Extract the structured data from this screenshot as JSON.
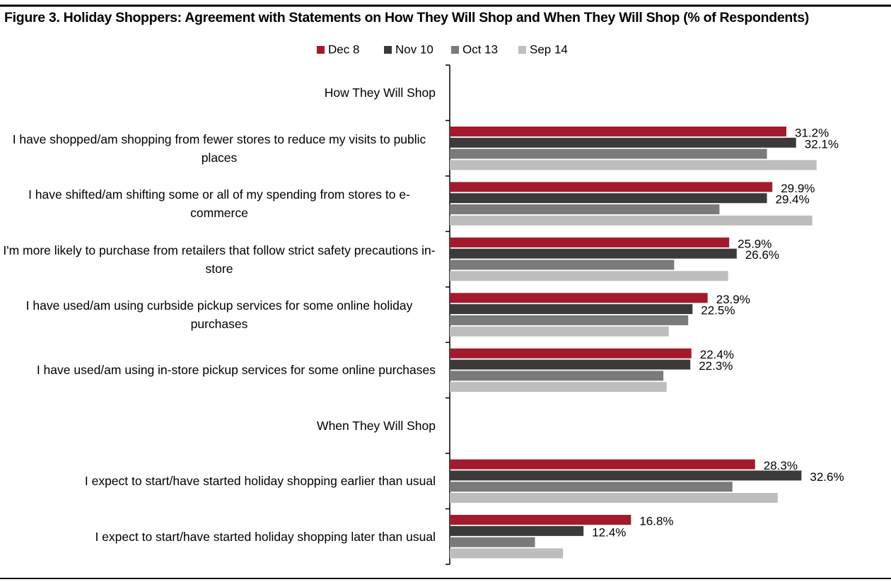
{
  "chart_data": {
    "type": "hbar",
    "title": "Figure 3. Holiday Shoppers: Agreement with Statements on How They Will Shop and When They Will Shop (% of Respondents)",
    "categories": [
      "How They Will Shop",
      "I have shopped/am shopping from fewer stores to reduce my visits to public places",
      "I have shifted/am shifting some or all of my spending from stores to e-commerce",
      "I'm more likely to purchase from retailers that follow strict safety precautions in-store",
      "I have used/am using curbside pickup services for some online holiday purchases",
      "I have used/am using in-store pickup services for some online purchases",
      "When They Will Shop",
      "I expect to start/have started holiday shopping earlier than usual",
      "I expect to start/have started holiday shopping later than usual"
    ],
    "series": [
      {
        "name": "Dec 8",
        "color": "#a31a2c",
        "values": [
          null,
          31.2,
          29.9,
          25.9,
          23.9,
          22.4,
          null,
          28.3,
          16.8
        ],
        "value_labels": [
          null,
          "31.2%",
          "29.9%",
          "25.9%",
          "23.9%",
          "22.4%",
          null,
          "28.3%",
          "16.8%"
        ]
      },
      {
        "name": "Nov 10",
        "color": "#3a3a3a",
        "values": [
          null,
          32.1,
          29.4,
          26.6,
          22.5,
          22.3,
          null,
          32.6,
          12.4
        ],
        "value_labels": [
          null,
          "32.1%",
          "29.4%",
          "26.6%",
          "22.5%",
          "22.3%",
          null,
          "32.6%",
          "12.4%"
        ]
      },
      {
        "name": "Oct 13",
        "color": "#7a7a7a",
        "values": [
          null,
          29.4,
          25.0,
          20.8,
          22.1,
          19.8,
          null,
          26.2,
          7.9
        ]
      },
      {
        "name": "Sep 14",
        "color": "#bdbdbd",
        "values": [
          null,
          34.0,
          33.6,
          25.8,
          20.3,
          20.1,
          null,
          30.4,
          10.5
        ]
      }
    ],
    "xlim": [
      0,
      35
    ],
    "legend": "top"
  }
}
